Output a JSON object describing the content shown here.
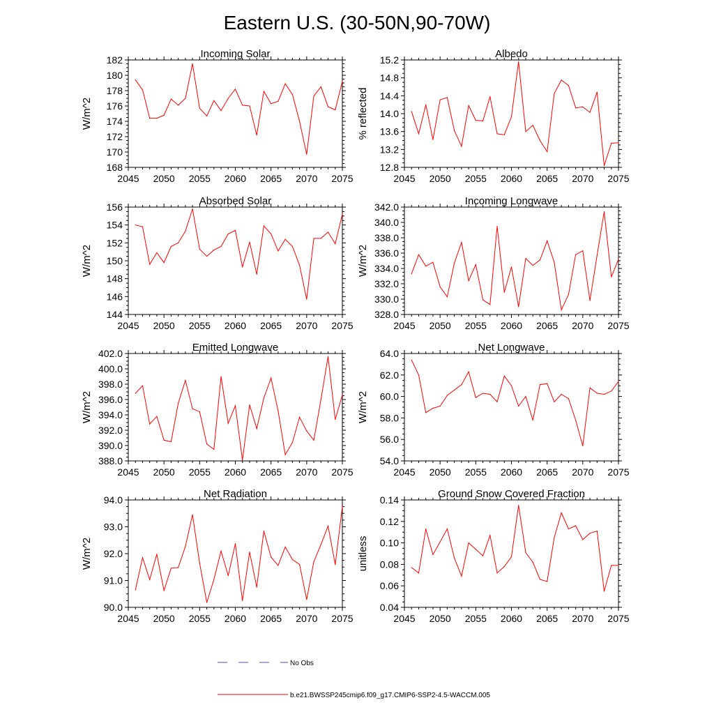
{
  "figure_title": "Eastern U.S. (30-50N,90-70W)",
  "legend": {
    "obs_label": "No Obs",
    "obs_color": "#4a4ad0",
    "model_label": "b.e21.BWSSP245cmip6.f09_g17.CMIP6-SSP2-4.5-WACCM.005",
    "model_color": "#ff0000"
  },
  "chart_data": [
    {
      "type": "line",
      "title": "Incoming Solar",
      "xlabel": "",
      "ylabel": "W/m^2",
      "xlim": [
        2045,
        2075
      ],
      "ylim": [
        168,
        182
      ],
      "xticks": [
        2045,
        2050,
        2055,
        2060,
        2065,
        2070,
        2075
      ],
      "yticks": [
        168,
        170,
        172,
        174,
        176,
        178,
        180,
        182
      ],
      "ytick_labels": [
        "168",
        "170",
        "172",
        "174",
        "176",
        "178",
        "180",
        "182"
      ],
      "series": [
        {
          "name": "b.e21.BWSSP245cmip6.f09_g17.CMIP6-SSP2-4.5-WACCM.005",
          "x": [
            2046,
            2047,
            2048,
            2049,
            2050,
            2051,
            2052,
            2053,
            2054,
            2055,
            2056,
            2057,
            2058,
            2059,
            2060,
            2061,
            2062,
            2063,
            2064,
            2065,
            2066,
            2067,
            2068,
            2069,
            2070,
            2071,
            2072,
            2073,
            2074,
            2075
          ],
          "values": [
            179.4,
            178.1,
            174.4,
            174.4,
            174.8,
            176.9,
            176.1,
            177.0,
            181.5,
            175.7,
            174.7,
            176.7,
            175.4,
            177.0,
            178.2,
            176.1,
            176.0,
            172.2,
            177.9,
            176.3,
            176.6,
            178.9,
            177.5,
            174.0,
            169.7,
            177.3,
            178.5,
            175.9,
            175.5,
            179.2
          ]
        }
      ]
    },
    {
      "type": "line",
      "title": "Albedo",
      "xlabel": "",
      "ylabel": "% reflected",
      "xlim": [
        2045,
        2075
      ],
      "ylim": [
        12.8,
        15.2
      ],
      "xticks": [
        2045,
        2050,
        2055,
        2060,
        2065,
        2070,
        2075
      ],
      "yticks": [
        12.8,
        13.2,
        13.6,
        14.0,
        14.4,
        14.8,
        15.2
      ],
      "ytick_labels": [
        "12.8",
        "13.2",
        "13.6",
        "14.0",
        "14.4",
        "14.8",
        "15.2"
      ],
      "series": [
        {
          "name": "b.e21.BWSSP245cmip6.f09_g17.CMIP6-SSP2-4.5-WACCM.005",
          "x": [
            2046,
            2047,
            2048,
            2049,
            2050,
            2051,
            2052,
            2053,
            2054,
            2055,
            2056,
            2057,
            2058,
            2059,
            2060,
            2061,
            2062,
            2063,
            2064,
            2065,
            2066,
            2067,
            2068,
            2069,
            2070,
            2071,
            2072,
            2073,
            2074,
            2075
          ],
          "values": [
            14.05,
            13.55,
            14.2,
            13.42,
            14.31,
            14.36,
            13.62,
            13.27,
            14.18,
            13.85,
            13.84,
            14.38,
            13.55,
            13.53,
            13.93,
            15.16,
            13.6,
            13.74,
            13.4,
            13.15,
            14.45,
            14.75,
            14.63,
            14.13,
            14.15,
            14.03,
            14.48,
            12.84,
            13.34,
            13.35
          ]
        }
      ]
    },
    {
      "type": "line",
      "title": "Absorbed Solar",
      "xlabel": "",
      "ylabel": "W/m^2",
      "xlim": [
        2045,
        2075
      ],
      "ylim": [
        144,
        156
      ],
      "xticks": [
        2045,
        2050,
        2055,
        2060,
        2065,
        2070,
        2075
      ],
      "yticks": [
        144,
        146,
        148,
        150,
        152,
        154,
        156
      ],
      "ytick_labels": [
        "144",
        "146",
        "148",
        "150",
        "152",
        "154",
        "156"
      ],
      "series": [
        {
          "name": "b.e21.BWSSP245cmip6.f09_g17.CMIP6-SSP2-4.5-WACCM.005",
          "x": [
            2046,
            2047,
            2048,
            2049,
            2050,
            2051,
            2052,
            2053,
            2054,
            2055,
            2056,
            2057,
            2058,
            2059,
            2060,
            2061,
            2062,
            2063,
            2064,
            2065,
            2066,
            2067,
            2068,
            2069,
            2070,
            2071,
            2072,
            2073,
            2074,
            2075
          ],
          "values": [
            154.0,
            153.8,
            149.6,
            150.9,
            149.8,
            151.6,
            152.0,
            153.3,
            155.8,
            151.3,
            150.5,
            151.2,
            151.6,
            153.0,
            153.4,
            149.3,
            152.1,
            148.5,
            153.9,
            153.0,
            151.1,
            152.4,
            151.6,
            149.5,
            145.7,
            152.5,
            152.5,
            153.2,
            151.9,
            155.2
          ]
        }
      ]
    },
    {
      "type": "line",
      "title": "Incoming Longwave",
      "xlabel": "",
      "ylabel": "W/m^2",
      "xlim": [
        2045,
        2075
      ],
      "ylim": [
        328,
        342
      ],
      "xticks": [
        2045,
        2050,
        2055,
        2060,
        2065,
        2070,
        2075
      ],
      "yticks": [
        328,
        330,
        332,
        334,
        336,
        338,
        340,
        342
      ],
      "ytick_labels": [
        "328.0",
        "330.0",
        "332.0",
        "334.0",
        "336.0",
        "338.0",
        "340.0",
        "342.0"
      ],
      "series": [
        {
          "name": "b.e21.BWSSP245cmip6.f09_g17.CMIP6-SSP2-4.5-WACCM.005",
          "x": [
            2046,
            2047,
            2048,
            2049,
            2050,
            2051,
            2052,
            2053,
            2054,
            2055,
            2056,
            2057,
            2058,
            2059,
            2060,
            2061,
            2062,
            2063,
            2064,
            2065,
            2066,
            2067,
            2068,
            2069,
            2070,
            2071,
            2072,
            2073,
            2074,
            2075
          ],
          "values": [
            333.3,
            335.8,
            334.3,
            334.8,
            331.6,
            330.3,
            334.7,
            337.4,
            332.4,
            334.5,
            329.9,
            329.3,
            339.5,
            330.9,
            334.2,
            329.0,
            335.3,
            334.4,
            335.1,
            337.6,
            334.8,
            328.6,
            330.6,
            335.8,
            336.3,
            329.8,
            335.7,
            341.4,
            332.9,
            335.2
          ]
        }
      ]
    },
    {
      "type": "line",
      "title": "Emitted Longwave",
      "xlabel": "",
      "ylabel": "W/m^2",
      "xlim": [
        2045,
        2075
      ],
      "ylim": [
        388,
        402
      ],
      "xticks": [
        2045,
        2050,
        2055,
        2060,
        2065,
        2070,
        2075
      ],
      "yticks": [
        388,
        390,
        392,
        394,
        396,
        398,
        400,
        402
      ],
      "ytick_labels": [
        "388.0",
        "390.0",
        "392.0",
        "394.0",
        "396.0",
        "398.0",
        "400.0",
        "402.0"
      ],
      "series": [
        {
          "name": "b.e21.BWSSP245cmip6.f09_g17.CMIP6-SSP2-4.5-WACCM.005",
          "x": [
            2046,
            2047,
            2048,
            2049,
            2050,
            2051,
            2052,
            2053,
            2054,
            2055,
            2056,
            2057,
            2058,
            2059,
            2060,
            2061,
            2062,
            2063,
            2064,
            2065,
            2066,
            2067,
            2068,
            2069,
            2070,
            2071,
            2072,
            2073,
            2074,
            2075
          ],
          "values": [
            396.8,
            397.8,
            392.8,
            393.8,
            390.7,
            390.5,
            395.5,
            398.5,
            394.8,
            394.4,
            390.2,
            389.5,
            399.0,
            392.9,
            395.2,
            388.1,
            395.3,
            392.2,
            396.2,
            398.8,
            394.5,
            388.8,
            390.4,
            393.7,
            391.9,
            390.7,
            396.0,
            401.6,
            393.4,
            396.6
          ]
        }
      ]
    },
    {
      "type": "line",
      "title": "Net Longwave",
      "xlabel": "",
      "ylabel": "W/m^2",
      "xlim": [
        2045,
        2075
      ],
      "ylim": [
        54,
        64
      ],
      "xticks": [
        2045,
        2050,
        2055,
        2060,
        2065,
        2070,
        2075
      ],
      "yticks": [
        54,
        56,
        58,
        60,
        62,
        64
      ],
      "ytick_labels": [
        "54.0",
        "56.0",
        "58.0",
        "60.0",
        "62.0",
        "64.0"
      ],
      "series": [
        {
          "name": "b.e21.BWSSP245cmip6.f09_g17.CMIP6-SSP2-4.5-WACCM.005",
          "x": [
            2046,
            2047,
            2048,
            2049,
            2050,
            2051,
            2052,
            2053,
            2054,
            2055,
            2056,
            2057,
            2058,
            2059,
            2060,
            2061,
            2062,
            2063,
            2064,
            2065,
            2066,
            2067,
            2068,
            2069,
            2070,
            2071,
            2072,
            2073,
            2074,
            2075
          ],
          "values": [
            63.4,
            62.0,
            58.5,
            58.9,
            59.1,
            60.1,
            60.6,
            61.1,
            62.3,
            59.9,
            60.3,
            60.2,
            59.5,
            61.9,
            61.0,
            59.1,
            60.0,
            57.8,
            61.1,
            61.2,
            59.5,
            60.2,
            59.8,
            57.8,
            55.4,
            60.8,
            60.3,
            60.2,
            60.5,
            61.4
          ]
        }
      ]
    },
    {
      "type": "line",
      "title": "Net Radiation",
      "xlabel": "",
      "ylabel": "W/m^2",
      "xlim": [
        2045,
        2075
      ],
      "ylim": [
        90,
        94
      ],
      "xticks": [
        2045,
        2050,
        2055,
        2060,
        2065,
        2070,
        2075
      ],
      "yticks": [
        90,
        91,
        92,
        93,
        94
      ],
      "ytick_labels": [
        "90.0",
        "91.0",
        "92.0",
        "93.0",
        "94.0"
      ],
      "series": [
        {
          "name": "b.e21.BWSSP245cmip6.f09_g17.CMIP6-SSP2-4.5-WACCM.005",
          "x": [
            2046,
            2047,
            2048,
            2049,
            2050,
            2051,
            2052,
            2053,
            2054,
            2055,
            2056,
            2057,
            2058,
            2059,
            2060,
            2061,
            2062,
            2063,
            2064,
            2065,
            2066,
            2067,
            2068,
            2069,
            2070,
            2071,
            2072,
            2073,
            2074,
            2075
          ],
          "values": [
            90.65,
            91.85,
            91.03,
            91.98,
            90.62,
            91.46,
            91.48,
            92.27,
            93.45,
            91.65,
            90.18,
            91.04,
            92.1,
            91.18,
            92.37,
            90.25,
            92.06,
            90.75,
            92.84,
            91.87,
            91.56,
            92.25,
            91.78,
            91.6,
            90.29,
            91.7,
            92.34,
            93.03,
            91.59,
            93.75
          ]
        }
      ]
    },
    {
      "type": "line",
      "title": "Ground Snow Covered Fraction",
      "xlabel": "",
      "ylabel": "unitless",
      "xlim": [
        2045,
        2075
      ],
      "ylim": [
        0.04,
        0.14
      ],
      "xticks": [
        2045,
        2050,
        2055,
        2060,
        2065,
        2070,
        2075
      ],
      "yticks": [
        0.04,
        0.06,
        0.08,
        0.1,
        0.12,
        0.14
      ],
      "ytick_labels": [
        "0.04",
        "0.06",
        "0.08",
        "0.10",
        "0.12",
        "0.14"
      ],
      "series": [
        {
          "name": "b.e21.BWSSP245cmip6.f09_g17.CMIP6-SSP2-4.5-WACCM.005",
          "x": [
            2046,
            2047,
            2048,
            2049,
            2050,
            2051,
            2052,
            2053,
            2054,
            2055,
            2056,
            2057,
            2058,
            2059,
            2060,
            2061,
            2062,
            2063,
            2064,
            2065,
            2066,
            2067,
            2068,
            2069,
            2070,
            2071,
            2072,
            2073,
            2074,
            2075
          ],
          "values": [
            0.077,
            0.072,
            0.113,
            0.089,
            0.101,
            0.113,
            0.086,
            0.069,
            0.1,
            0.094,
            0.088,
            0.107,
            0.072,
            0.078,
            0.087,
            0.135,
            0.091,
            0.082,
            0.066,
            0.064,
            0.105,
            0.128,
            0.113,
            0.116,
            0.103,
            0.109,
            0.111,
            0.055,
            0.079,
            0.079
          ]
        }
      ]
    }
  ]
}
